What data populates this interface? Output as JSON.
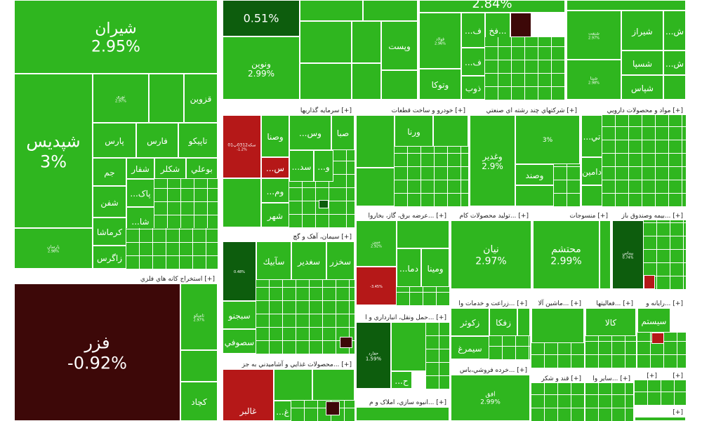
{
  "sectors": {
    "s_investment": {
      "label": "سرمايه گذاريها",
      "expand": "[+]"
    },
    "s_auto": {
      "label": "خودرو و ساخت قطعات",
      "expand": "[+]"
    },
    "s_multi": {
      "label": "شركتهاي چند رشته اي صنعتي",
      "expand": "[+]"
    },
    "s_pharma": {
      "label": "مواد و محصولات دارويي",
      "expand": "[+]"
    },
    "s_cement": {
      "label": "سيمان، آهک و گچ",
      "expand": "[+]"
    },
    "s_power": {
      "label": "عرضه برق، گاز، بخاروا...",
      "expand": "[+]"
    },
    "s_oil": {
      "label": "توليد محصولات کام...",
      "expand": "[+]"
    },
    "s_textile": {
      "label": "منسوجات",
      "expand": "[+]"
    },
    "s_insurance": {
      "label": "بيمه وصندوق باز...",
      "expand": "[+]"
    },
    "s_mining": {
      "label": "استخراج کانه هاي فلزي",
      "expand": "[+]"
    },
    "s_transport": {
      "label": "حمل ونقل، انبارداري و ا...",
      "expand": "[+]"
    },
    "s_agri": {
      "label": "زراعت و خدمات وا...",
      "expand": "[+]"
    },
    "s_machinery": {
      "label": "ماشين آلا...",
      "expand": "[+]"
    },
    "s_activity": {
      "label": "فعاليتها...",
      "expand": "[+]"
    },
    "s_computer": {
      "label": "رايانه و...",
      "expand": "[+]"
    },
    "s_food": {
      "label": "محصولات غذايي و آشاميدني به جز...",
      "expand": "[+]"
    },
    "s_retail": {
      "label": "خرده فروشي،باس...",
      "expand": "[+]"
    },
    "s_sugar": {
      "label": "قند و شکر",
      "expand": "[+]"
    },
    "s_other": {
      "label": "ساير وا...",
      "expand": "[+]"
    },
    "s_realestate": {
      "label": "انبوه سازي، املاک و م...",
      "expand": "[+]"
    },
    "s_x1": {
      "label": "",
      "expand": "[+]"
    },
    "s_x2": {
      "label": "",
      "expand": "[+]"
    },
    "s_x3": {
      "label": "",
      "expand": "[+]"
    }
  },
  "tiles": {
    "shiran": {
      "name": "شيران",
      "pct": "2.95%"
    },
    "shepdis": {
      "name": "شپديس",
      "pct": "3%"
    },
    "fazar": {
      "name": "فزر",
      "pct": "-0.92%"
    },
    "top_mid_1": {
      "name": "",
      "pct": "0.51%"
    },
    "top_mid_2": {
      "name": "",
      "pct": "2.84%"
    },
    "vanovin": {
      "name": "ونوين",
      "pct": "2.99%"
    },
    "vapost": {
      "name": "وپست",
      "pct": ""
    },
    "vatooka": {
      "name": "وتوکا",
      "pct": ""
    },
    "zob": {
      "name": "ذوب",
      "pct": ""
    },
    "fakh": {
      "name": "فخ...",
      "pct": ""
    },
    "fe1": {
      "name": "...ف",
      "pct": ""
    },
    "fe2": {
      "name": "...ف",
      "pct": ""
    },
    "foulad": {
      "name": "فولاد",
      "pct": "2.96%"
    },
    "shiraz": {
      "name": "شيراز",
      "pct": ""
    },
    "shesepa": {
      "name": "شسپا",
      "pct": ""
    },
    "shepas": {
      "name": "شپاس",
      "pct": ""
    },
    "shenaran": {
      "name": "شنفت",
      "pct": "2.97%"
    },
    "sheph": {
      "name": "شپنا",
      "pct": "2.98%"
    },
    "shesh": {
      "name": "...ش",
      "pct": ""
    },
    "shebe": {
      "name": "...ش",
      "pct": ""
    },
    "qazvin": {
      "name": "قزوين",
      "pct": ""
    },
    "taprikoo": {
      "name": "تاپيكو",
      "pct": ""
    },
    "pars": {
      "name": "پارس",
      "pct": ""
    },
    "fars": {
      "name": "فارس",
      "pct": ""
    },
    "jam": {
      "name": "جم",
      "pct": ""
    },
    "shafar": {
      "name": "شفار",
      "pct": ""
    },
    "shakler": {
      "name": "شكلر",
      "pct": ""
    },
    "boali": {
      "name": "بوعلي",
      "pct": ""
    },
    "shaghan": {
      "name": "شفن",
      "pct": ""
    },
    "pak": {
      "name": "...پاک",
      "pct": ""
    },
    "karmasha": {
      "name": "كرماشا",
      "pct": ""
    },
    "sha": {
      "name": "...شا",
      "pct": ""
    },
    "zagros": {
      "name": "زاگرس",
      "pct": ""
    },
    "parsan": {
      "name": "پارسان",
      "pct": "2.98%"
    },
    "noori": {
      "name": "نوري",
      "pct": "2.97%"
    },
    "vasna": {
      "name": "وصنا",
      "pct": ""
    },
    "vas": {
      "name": "...وس",
      "pct": ""
    },
    "saba": {
      "name": "صبا",
      "pct": ""
    },
    "sekkeh": {
      "name": "سكه0312پ01",
      "pct": "-1.2%"
    },
    "sed": {
      "name": "...سد",
      "pct": ""
    },
    "vo": {
      "name": "...و",
      "pct": ""
    },
    "vom": {
      "name": "...وم",
      "pct": ""
    },
    "shahr": {
      "name": "شهر",
      "pct": ""
    },
    "vs": {
      "name": "...س",
      "pct": ""
    },
    "varna": {
      "name": "ورنا",
      "pct": ""
    },
    "vaghadir": {
      "name": "وغدير",
      "pct": "2.9%"
    },
    "vasanad": {
      "name": "وصند",
      "pct": ""
    },
    "multi_3": {
      "name": "",
      "pct": "3%"
    },
    "damin": {
      "name": "دامين",
      "pct": ""
    },
    "ti": {
      "name": "...تي",
      "pct": ""
    },
    "sakhzar": {
      "name": "سخزر",
      "pct": ""
    },
    "saghdir": {
      "name": "سغدير",
      "pct": ""
    },
    "sabik": {
      "name": "سآبيك",
      "pct": ""
    },
    "sebjono": {
      "name": "سبجنو",
      "pct": ""
    },
    "sesufi": {
      "name": "سصوفي",
      "pct": ""
    },
    "cement_dark": {
      "name": "",
      "pct": "0.48%"
    },
    "mobin": {
      "name": "مبين",
      "pct": "2.92%"
    },
    "vomina": {
      "name": "ومينا",
      "pct": ""
    },
    "dama": {
      "name": "...دما",
      "pct": ""
    },
    "power_red": {
      "name": "",
      "pct": "-3.45%"
    },
    "nian": {
      "name": "نيان",
      "pct": "2.97%"
    },
    "mohtasham": {
      "name": "محتشم",
      "pct": "2.99%"
    },
    "bimas": {
      "name": "بيماس",
      "pct": "0.74%"
    },
    "hafarid": {
      "name": "حفارد",
      "pct": "1.59%"
    },
    "zakoor": {
      "name": "زكوثر",
      "pct": ""
    },
    "zafka": {
      "name": "زفكا",
      "pct": ""
    },
    "simorgh": {
      "name": "سيمرغ",
      "pct": ""
    },
    "kala": {
      "name": "كالا",
      "pct": ""
    },
    "system": {
      "name": "سيستم",
      "pct": ""
    },
    "ofgh": {
      "name": "افق",
      "pct": "2.99%"
    },
    "ghalbar": {
      "name": "غالبر",
      "pct": ""
    },
    "gh": {
      "name": "...غ",
      "pct": ""
    },
    "hh": {
      "name": "...ح",
      "pct": ""
    },
    "kechad": {
      "name": "كچاد",
      "pct": ""
    },
    "tamiko": {
      "name": "تاميكو",
      "pct": "2.97%"
    }
  }
}
